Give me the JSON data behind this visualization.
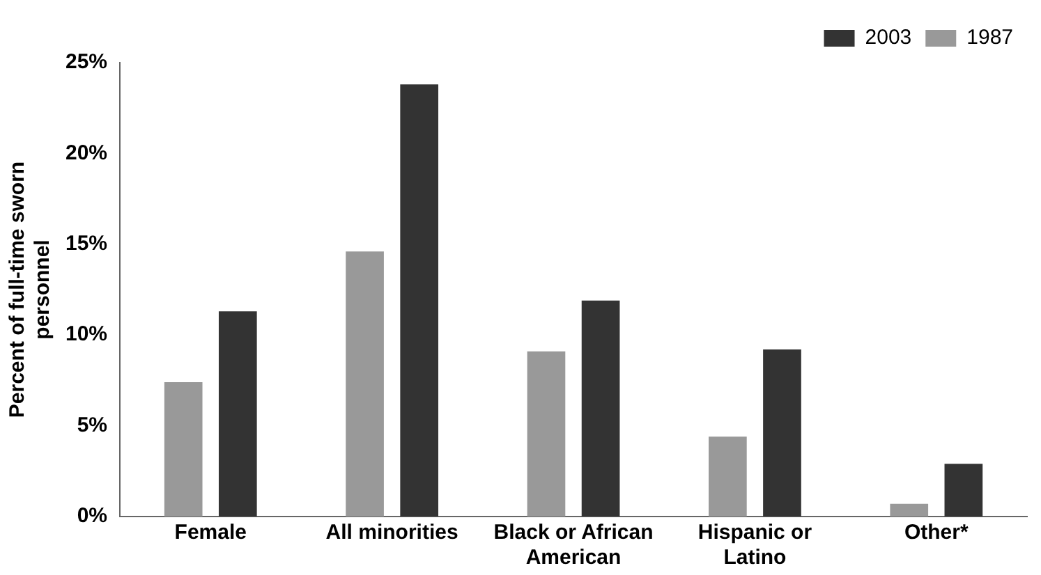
{
  "chart_data": {
    "type": "bar",
    "ylabel": "Percent of full-time sworn personnel",
    "categories": [
      "Female",
      "All minorities",
      "Black or African American",
      "Hispanic or Latino",
      "Other*"
    ],
    "series": [
      {
        "name": "1987",
        "color": "#999999",
        "values": [
          7.4,
          14.6,
          9.1,
          4.4,
          0.7
        ]
      },
      {
        "name": "2003",
        "color": "#333333",
        "values": [
          11.3,
          23.8,
          11.9,
          9.2,
          2.9
        ]
      }
    ],
    "ylim": [
      0,
      25
    ],
    "yticks": [
      {
        "value": 0,
        "label": "0%"
      },
      {
        "value": 5,
        "label": "5%"
      },
      {
        "value": 10,
        "label": "10%"
      },
      {
        "value": 15,
        "label": "15%"
      },
      {
        "value": 20,
        "label": "20%"
      },
      {
        "value": 25,
        "label": "25%"
      }
    ],
    "grid": false,
    "legend": "top right"
  }
}
